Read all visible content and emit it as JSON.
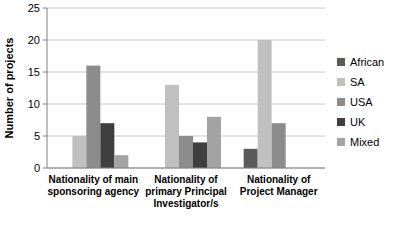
{
  "chart_data": {
    "type": "bar",
    "y_label": "Number of projects",
    "categories": [
      "Nationality of main sponsoring agency",
      "Nationality of primary Principal Investigator/s",
      "Nationality of Project Manager"
    ],
    "series": [
      {
        "name": "African",
        "color": "#5a5a5a",
        "values": [
          0,
          0,
          3
        ]
      },
      {
        "name": "SA",
        "color": "#c0c0c0",
        "values": [
          5,
          13,
          20
        ]
      },
      {
        "name": "USA",
        "color": "#8c8c8c",
        "values": [
          16,
          5,
          7
        ]
      },
      {
        "name": "UK",
        "color": "#3f3f3f",
        "values": [
          7,
          4,
          0
        ]
      },
      {
        "name": "Mixed",
        "color": "#a3a3a3",
        "values": [
          2,
          8,
          0
        ]
      }
    ],
    "ylim": [
      0,
      25
    ],
    "yticks": [
      0,
      5,
      10,
      15,
      20,
      25
    ],
    "grid": true,
    "legend": "right"
  }
}
